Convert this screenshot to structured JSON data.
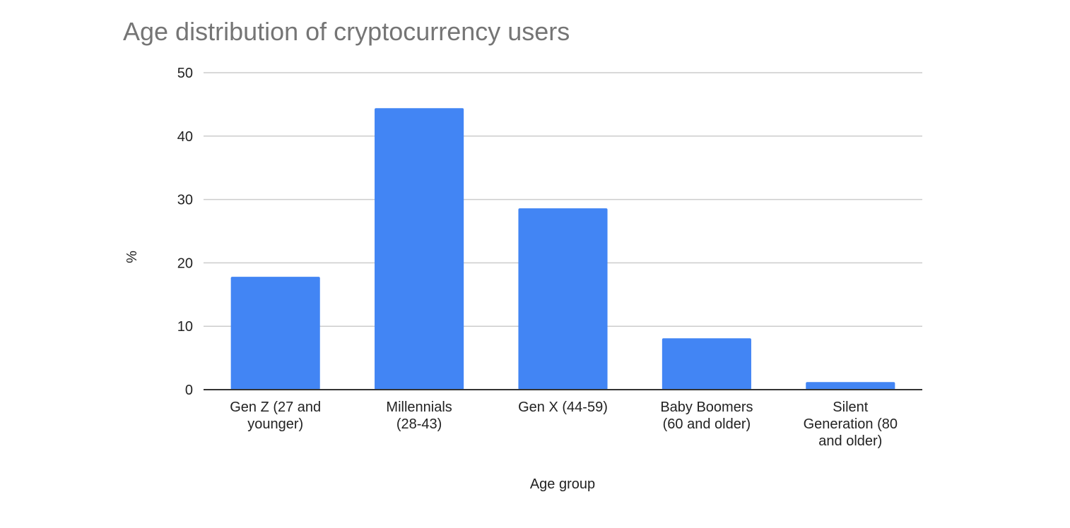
{
  "chart_data": {
    "type": "bar",
    "title": "Age distribution of cryptocurrency users",
    "xlabel": "Age group",
    "ylabel": "%",
    "categories": [
      [
        "Gen Z (27 and",
        "younger)"
      ],
      [
        "Millennials",
        "(28-43)"
      ],
      [
        "Gen X (44-59)"
      ],
      [
        "Baby Boomers",
        "(60 and older)"
      ],
      [
        "Silent",
        "Generation (80",
        "and older)"
      ]
    ],
    "values": [
      17.8,
      44.4,
      28.6,
      8.1,
      1.2
    ],
    "ylim": [
      0,
      50
    ],
    "yticks": [
      0,
      10,
      20,
      30,
      40,
      50
    ],
    "grid": true,
    "legend": "none",
    "colors": {
      "bar": "#4285f4",
      "grid": "#cccccc",
      "axis": "#333333"
    }
  }
}
